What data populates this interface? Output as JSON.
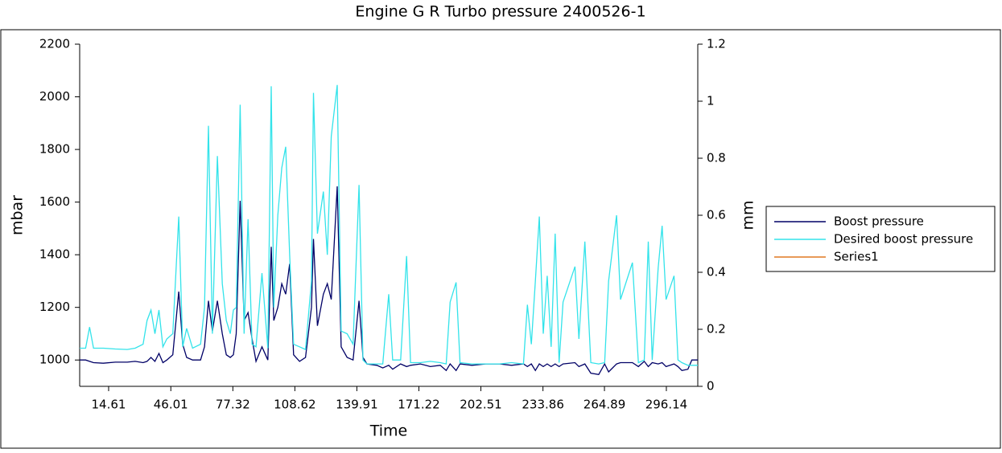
{
  "chart_data": {
    "type": "line",
    "title": "Engine G R  Turbo pressure 2400526-1",
    "x_label": "Time",
    "y_label": "mbar",
    "y2_label": "mm",
    "x": [
      0,
      3,
      5,
      7,
      12,
      18,
      24,
      28,
      32,
      34,
      36,
      38,
      40,
      42,
      44,
      47,
      50,
      52,
      54,
      57,
      61,
      63,
      65,
      67,
      69.5,
      72,
      74,
      76,
      77.6,
      79,
      81,
      83,
      85,
      87,
      89,
      92,
      95,
      96.7,
      98,
      100,
      102,
      104,
      106,
      108,
      111,
      114,
      117,
      118,
      120,
      123,
      125,
      127,
      130,
      132,
      135,
      138,
      141,
      143,
      145,
      150,
      153,
      156,
      158,
      162,
      165,
      167,
      172,
      177,
      182,
      185,
      187,
      190,
      192,
      198,
      205,
      212,
      218,
      224,
      226,
      228,
      230,
      232,
      234,
      236,
      238,
      240,
      242,
      244,
      250,
      252,
      255,
      258,
      262,
      265,
      267,
      271,
      273,
      279,
      282,
      285,
      287,
      289,
      292,
      294,
      296,
      300,
      302,
      304,
      307,
      309,
      312
    ],
    "xlim": [
      0,
      312
    ],
    "xticks": [
      14.61,
      46.01,
      77.32,
      108.62,
      139.91,
      171.22,
      202.51,
      233.86,
      264.89,
      296.14
    ],
    "ylim": [
      900,
      2200
    ],
    "yticks": [
      1000,
      1200,
      1400,
      1600,
      1800,
      2000,
      2200
    ],
    "y2lim": [
      0,
      1.2
    ],
    "y2ticks": [
      0,
      0.2,
      0.4,
      0.6,
      0.8,
      1,
      1.2
    ],
    "legend": "right",
    "series": [
      {
        "name": "Boost pressure",
        "color": "#000066",
        "values": [
          1000,
          1000,
          995,
          990,
          988,
          992,
          992,
          995,
          990,
          995,
          1010,
          995,
          1025,
          990,
          1000,
          1020,
          1260,
          1060,
          1010,
          1000,
          1000,
          1050,
          1225,
          1110,
          1225,
          1100,
          1020,
          1010,
          1020,
          1100,
          1605,
          1150,
          1180,
          1080,
          995,
          1050,
          1000,
          1430,
          1150,
          1200,
          1290,
          1250,
          1365,
          1020,
          995,
          1010,
          1200,
          1460,
          1130,
          1250,
          1290,
          1230,
          1660,
          1050,
          1010,
          1000,
          1225,
          1010,
          985,
          980,
          970,
          980,
          965,
          985,
          975,
          980,
          985,
          975,
          980,
          960,
          985,
          960,
          985,
          980,
          985,
          985,
          980,
          985,
          975,
          985,
          960,
          985,
          975,
          985,
          975,
          985,
          975,
          985,
          990,
          975,
          985,
          950,
          945,
          985,
          955,
          985,
          990,
          990,
          975,
          995,
          975,
          990,
          985,
          990,
          975,
          985,
          975,
          960,
          965,
          1000,
          1000
        ]
      },
      {
        "name": "Desired boost pressure",
        "color": "#33e3ea",
        "values": [
          1045,
          1045,
          1125,
          1045,
          1045,
          1042,
          1040,
          1045,
          1060,
          1150,
          1190,
          1100,
          1190,
          1050,
          1080,
          1100,
          1545,
          1050,
          1120,
          1045,
          1060,
          1200,
          1890,
          1100,
          1775,
          1290,
          1150,
          1100,
          1190,
          1200,
          1970,
          1100,
          1535,
          1060,
          1050,
          1330,
          1045,
          2040,
          1200,
          1550,
          1730,
          1810,
          1400,
          1060,
          1050,
          1040,
          1300,
          2015,
          1480,
          1640,
          1400,
          1850,
          2045,
          1110,
          1100,
          1060,
          1665,
          1000,
          985,
          985,
          985,
          1250,
          1000,
          1000,
          1395,
          990,
          990,
          995,
          990,
          985,
          1220,
          1295,
          990,
          985,
          985,
          985,
          990,
          985,
          1210,
          1060,
          1300,
          1545,
          1100,
          1320,
          1050,
          1480,
          990,
          1220,
          1355,
          1080,
          1450,
          990,
          985,
          990,
          1300,
          1550,
          1230,
          1370,
          990,
          1000,
          1450,
          1000,
          1350,
          1510,
          1230,
          1320,
          1000,
          990,
          980,
          980,
          980
        ]
      },
      {
        "name": "Series1",
        "color": "#e07820",
        "axis": "y2",
        "values": [
          null,
          null,
          null,
          null,
          null,
          null,
          null,
          null,
          null,
          null,
          null,
          null,
          null,
          null,
          null,
          null,
          null,
          null,
          null,
          null,
          null,
          null,
          null,
          null,
          null,
          null,
          null,
          null,
          null,
          null,
          null,
          null,
          null,
          null,
          null,
          null,
          null,
          null,
          null,
          null,
          null,
          null,
          null,
          null,
          null,
          null,
          null,
          null,
          null,
          null,
          null,
          null,
          null,
          null,
          null,
          null,
          null,
          null,
          null,
          null,
          null,
          null,
          null,
          null,
          null,
          null,
          null,
          null,
          null,
          null,
          null,
          null,
          null,
          null,
          null,
          null,
          null,
          null,
          null,
          null,
          null,
          null,
          null,
          null,
          null,
          null,
          null,
          null,
          null,
          null,
          null,
          null,
          null,
          null,
          null,
          null,
          null,
          null,
          null,
          null,
          null,
          null,
          null,
          null,
          null,
          null,
          null,
          null,
          null,
          null,
          null
        ]
      }
    ]
  }
}
